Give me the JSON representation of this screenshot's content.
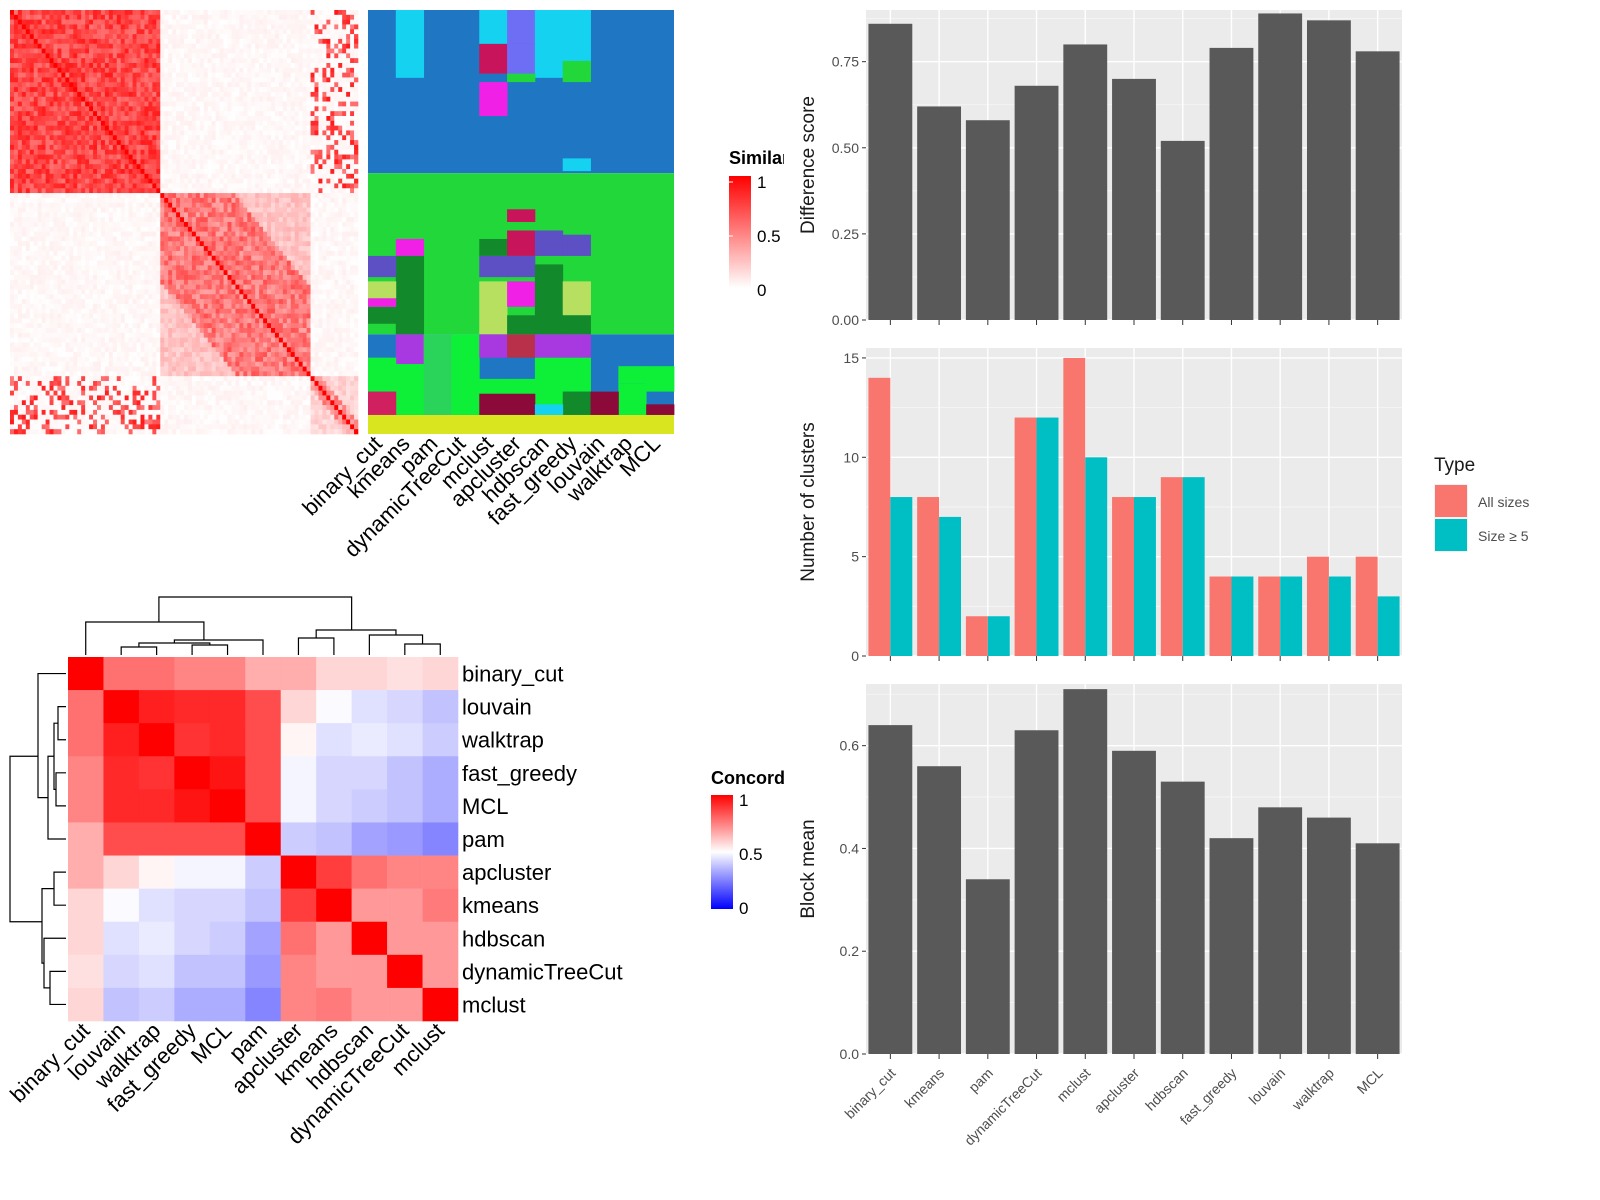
{
  "chart_data": [
    {
      "id": "similarity_heatmap",
      "type": "heatmap",
      "legend_title": "Similarity",
      "legend_ticks": [
        "1",
        "0.5",
        "0"
      ],
      "legend_colors": [
        "#ff0000",
        "#ffffff"
      ],
      "value_range": [
        0,
        1
      ],
      "row_block_starts": [
        0,
        0.385,
        0.765
      ],
      "blocks_description_free": true
    },
    {
      "id": "cluster_assignment_heatmap",
      "type": "heatmap",
      "columns": [
        "binary_cut",
        "kmeans",
        "pam",
        "dynamicTreeCut",
        "mclust",
        "apcluster",
        "hdbscan",
        "fast_greedy",
        "louvain",
        "walktrap",
        "MCL"
      ]
    },
    {
      "id": "concordance_heatmap",
      "type": "heatmap",
      "legend_title": "Concordance",
      "legend_ticks": [
        "1",
        "0.5",
        "0"
      ],
      "legend_colors": [
        "#0000ff",
        "#ffffff",
        "#ff0000"
      ],
      "value_range": [
        0,
        1
      ],
      "rows": [
        "binary_cut",
        "louvain",
        "walktrap",
        "fast_greedy",
        "MCL",
        "pam",
        "apcluster",
        "kmeans",
        "hdbscan",
        "dynamicTreeCut",
        "mclust"
      ],
      "columns": [
        "binary_cut",
        "louvain",
        "walktrap",
        "fast_greedy",
        "MCL",
        "pam",
        "apcluster",
        "kmeans",
        "hdbscan",
        "dynamicTreeCut",
        "mclust"
      ],
      "values": [
        [
          1.0,
          0.78,
          0.78,
          0.74,
          0.74,
          0.66,
          0.66,
          0.58,
          0.58,
          0.56,
          0.58
        ],
        [
          0.78,
          1.0,
          0.94,
          0.92,
          0.92,
          0.85,
          0.58,
          0.49,
          0.44,
          0.42,
          0.38
        ],
        [
          0.78,
          0.94,
          1.0,
          0.9,
          0.92,
          0.85,
          0.52,
          0.44,
          0.46,
          0.44,
          0.4
        ],
        [
          0.74,
          0.92,
          0.9,
          1.0,
          0.96,
          0.85,
          0.48,
          0.42,
          0.42,
          0.38,
          0.34
        ],
        [
          0.74,
          0.92,
          0.92,
          0.96,
          1.0,
          0.85,
          0.48,
          0.42,
          0.4,
          0.38,
          0.34
        ],
        [
          0.66,
          0.85,
          0.85,
          0.85,
          0.85,
          1.0,
          0.4,
          0.38,
          0.32,
          0.3,
          0.26
        ],
        [
          0.66,
          0.58,
          0.52,
          0.48,
          0.48,
          0.4,
          1.0,
          0.88,
          0.78,
          0.74,
          0.74
        ],
        [
          0.58,
          0.49,
          0.44,
          0.42,
          0.42,
          0.38,
          0.88,
          1.0,
          0.7,
          0.7,
          0.76
        ],
        [
          0.58,
          0.44,
          0.46,
          0.42,
          0.4,
          0.32,
          0.78,
          0.7,
          1.0,
          0.7,
          0.7
        ],
        [
          0.56,
          0.42,
          0.44,
          0.38,
          0.38,
          0.3,
          0.74,
          0.7,
          0.7,
          1.0,
          0.7
        ],
        [
          0.58,
          0.38,
          0.4,
          0.34,
          0.34,
          0.26,
          0.74,
          0.76,
          0.7,
          0.7,
          1.0
        ]
      ]
    },
    {
      "id": "difference_score",
      "type": "bar",
      "categories": [
        "binary_cut",
        "kmeans",
        "pam",
        "dynamicTreeCut",
        "mclust",
        "apcluster",
        "hdbscan",
        "fast_greedy",
        "louvain",
        "walktrap",
        "MCL"
      ],
      "values": [
        0.86,
        0.62,
        0.58,
        0.68,
        0.8,
        0.7,
        0.52,
        0.79,
        0.89,
        0.87,
        0.78
      ],
      "ylabel": "Difference score",
      "ylim": [
        0,
        0.9
      ],
      "yticks": [
        0.0,
        0.25,
        0.5,
        0.75
      ],
      "ytick_labels": [
        "0.00",
        "0.25",
        "0.50",
        "0.75"
      ],
      "color": "#595959"
    },
    {
      "id": "number_of_clusters",
      "type": "bar",
      "categories": [
        "binary_cut",
        "kmeans",
        "pam",
        "dynamicTreeCut",
        "mclust",
        "apcluster",
        "hdbscan",
        "fast_greedy",
        "louvain",
        "walktrap",
        "MCL"
      ],
      "series": [
        {
          "name": "All sizes",
          "color": "#f8766d",
          "values": [
            14,
            8,
            2,
            12,
            15,
            8,
            9,
            4,
            4,
            5,
            5
          ]
        },
        {
          "name": "Size ≥ 5",
          "color": "#00bfc4",
          "values": [
            8,
            7,
            2,
            12,
            10,
            8,
            9,
            4,
            4,
            4,
            3
          ]
        }
      ],
      "ylabel": "Number of clusters",
      "ylim": [
        0,
        15.5
      ],
      "yticks": [
        0,
        5,
        10,
        15
      ],
      "ytick_labels": [
        "0",
        "5",
        "10",
        "15"
      ],
      "legend": {
        "title": "Type",
        "position": "right"
      }
    },
    {
      "id": "block_mean",
      "type": "bar",
      "categories": [
        "binary_cut",
        "kmeans",
        "pam",
        "dynamicTreeCut",
        "mclust",
        "apcluster",
        "hdbscan",
        "fast_greedy",
        "louvain",
        "walktrap",
        "MCL"
      ],
      "values": [
        0.64,
        0.56,
        0.34,
        0.63,
        0.71,
        0.59,
        0.53,
        0.42,
        0.48,
        0.46,
        0.41
      ],
      "ylabel": "Block mean",
      "ylim": [
        0,
        0.72
      ],
      "yticks": [
        0.0,
        0.2,
        0.4,
        0.6
      ],
      "ytick_labels": [
        "0.0",
        "0.2",
        "0.4",
        "0.6"
      ],
      "color": "#595959"
    }
  ]
}
